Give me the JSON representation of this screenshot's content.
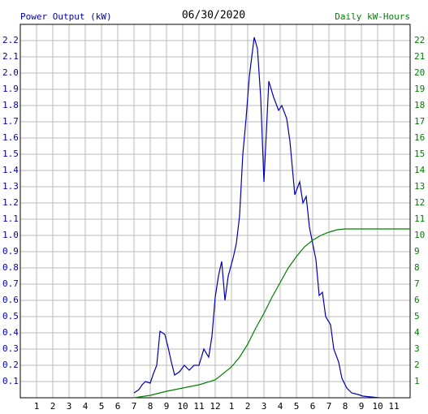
{
  "chart_data": {
    "type": "line",
    "title": "06/30/2020",
    "xlim": [
      0,
      24
    ],
    "xticks": [
      1,
      2,
      3,
      4,
      5,
      6,
      7,
      8,
      9,
      10,
      11,
      12,
      {
        "value": 13,
        "label": "1"
      },
      {
        "value": 14,
        "label": "2"
      },
      {
        "value": 15,
        "label": "3"
      },
      {
        "value": 16,
        "label": "4"
      },
      {
        "value": 17,
        "label": "5"
      },
      {
        "value": 18,
        "label": "6"
      },
      {
        "value": 19,
        "label": "7"
      },
      {
        "value": 20,
        "label": "8"
      },
      {
        "value": 21,
        "label": "9"
      },
      {
        "value": 22,
        "label": "10"
      },
      {
        "value": 23,
        "label": "11"
      }
    ],
    "ylim": [
      0,
      2.3
    ],
    "yticks": [
      0.1,
      0.2,
      0.3,
      0.4,
      0.5,
      0.6,
      0.7,
      0.8,
      0.9,
      {
        "value": 1.0,
        "label": "1.0"
      },
      1.1,
      1.2,
      1.3,
      1.4,
      1.5,
      1.6,
      1.7,
      1.8,
      1.9,
      {
        "value": 2.0,
        "label": "2.0"
      },
      2.1,
      2.2
    ],
    "y2lim": [
      0,
      23
    ],
    "y2ticks": [
      1,
      2,
      3,
      4,
      5,
      6,
      7,
      8,
      9,
      10,
      11,
      12,
      13,
      14,
      15,
      16,
      17,
      18,
      19,
      20,
      21,
      22
    ],
    "grid": true,
    "series": [
      {
        "name": "Power Output (kW)",
        "color": "#0000b0",
        "axis": "y",
        "x": [
          7.0,
          7.3,
          7.5,
          7.7,
          8.0,
          8.2,
          8.4,
          8.6,
          8.9,
          9.1,
          9.3,
          9.5,
          9.8,
          10.1,
          10.4,
          10.7,
          11.0,
          11.3,
          11.6,
          11.8,
          12.0,
          12.2,
          12.4,
          12.6,
          12.8,
          13.1,
          13.3,
          13.5,
          13.7,
          13.9,
          14.1,
          14.4,
          14.6,
          14.8,
          15.0,
          15.3,
          15.6,
          15.9,
          16.1,
          16.4,
          16.6,
          16.9,
          17.2,
          17.4,
          17.6,
          17.8,
          18.0,
          18.2,
          18.4,
          18.6,
          18.8,
          19.1,
          19.3,
          19.6,
          19.8,
          20.1,
          20.4,
          20.8,
          21.1,
          22.1
        ],
        "values": [
          0.03,
          0.05,
          0.08,
          0.1,
          0.09,
          0.15,
          0.2,
          0.41,
          0.39,
          0.31,
          0.22,
          0.14,
          0.16,
          0.2,
          0.17,
          0.2,
          0.2,
          0.3,
          0.25,
          0.38,
          0.62,
          0.75,
          0.84,
          0.6,
          0.75,
          0.86,
          0.95,
          1.12,
          1.5,
          1.72,
          1.98,
          2.22,
          2.15,
          1.85,
          1.33,
          1.95,
          1.85,
          1.77,
          1.8,
          1.72,
          1.58,
          1.25,
          1.33,
          1.2,
          1.24,
          1.05,
          0.95,
          0.85,
          0.63,
          0.65,
          0.5,
          0.45,
          0.3,
          0.22,
          0.12,
          0.06,
          0.03,
          0.02,
          0.01,
          0
        ]
      },
      {
        "name": "Daily kW-Hours",
        "color": "#008000",
        "axis": "y2",
        "x": [
          7.0,
          8.0,
          9.0,
          10.0,
          11.0,
          12.0,
          12.5,
          13.0,
          13.5,
          14.0,
          14.5,
          15.0,
          15.5,
          16.0,
          16.5,
          17.0,
          17.5,
          18.0,
          18.5,
          19.0,
          19.5,
          20.0,
          24.0
        ],
        "values": [
          0,
          0.15,
          0.4,
          0.6,
          0.8,
          1.1,
          1.5,
          1.9,
          2.5,
          3.3,
          4.3,
          5.2,
          6.2,
          7.1,
          8.0,
          8.7,
          9.3,
          9.7,
          10.0,
          10.2,
          10.35,
          10.4,
          10.4
        ]
      }
    ]
  }
}
